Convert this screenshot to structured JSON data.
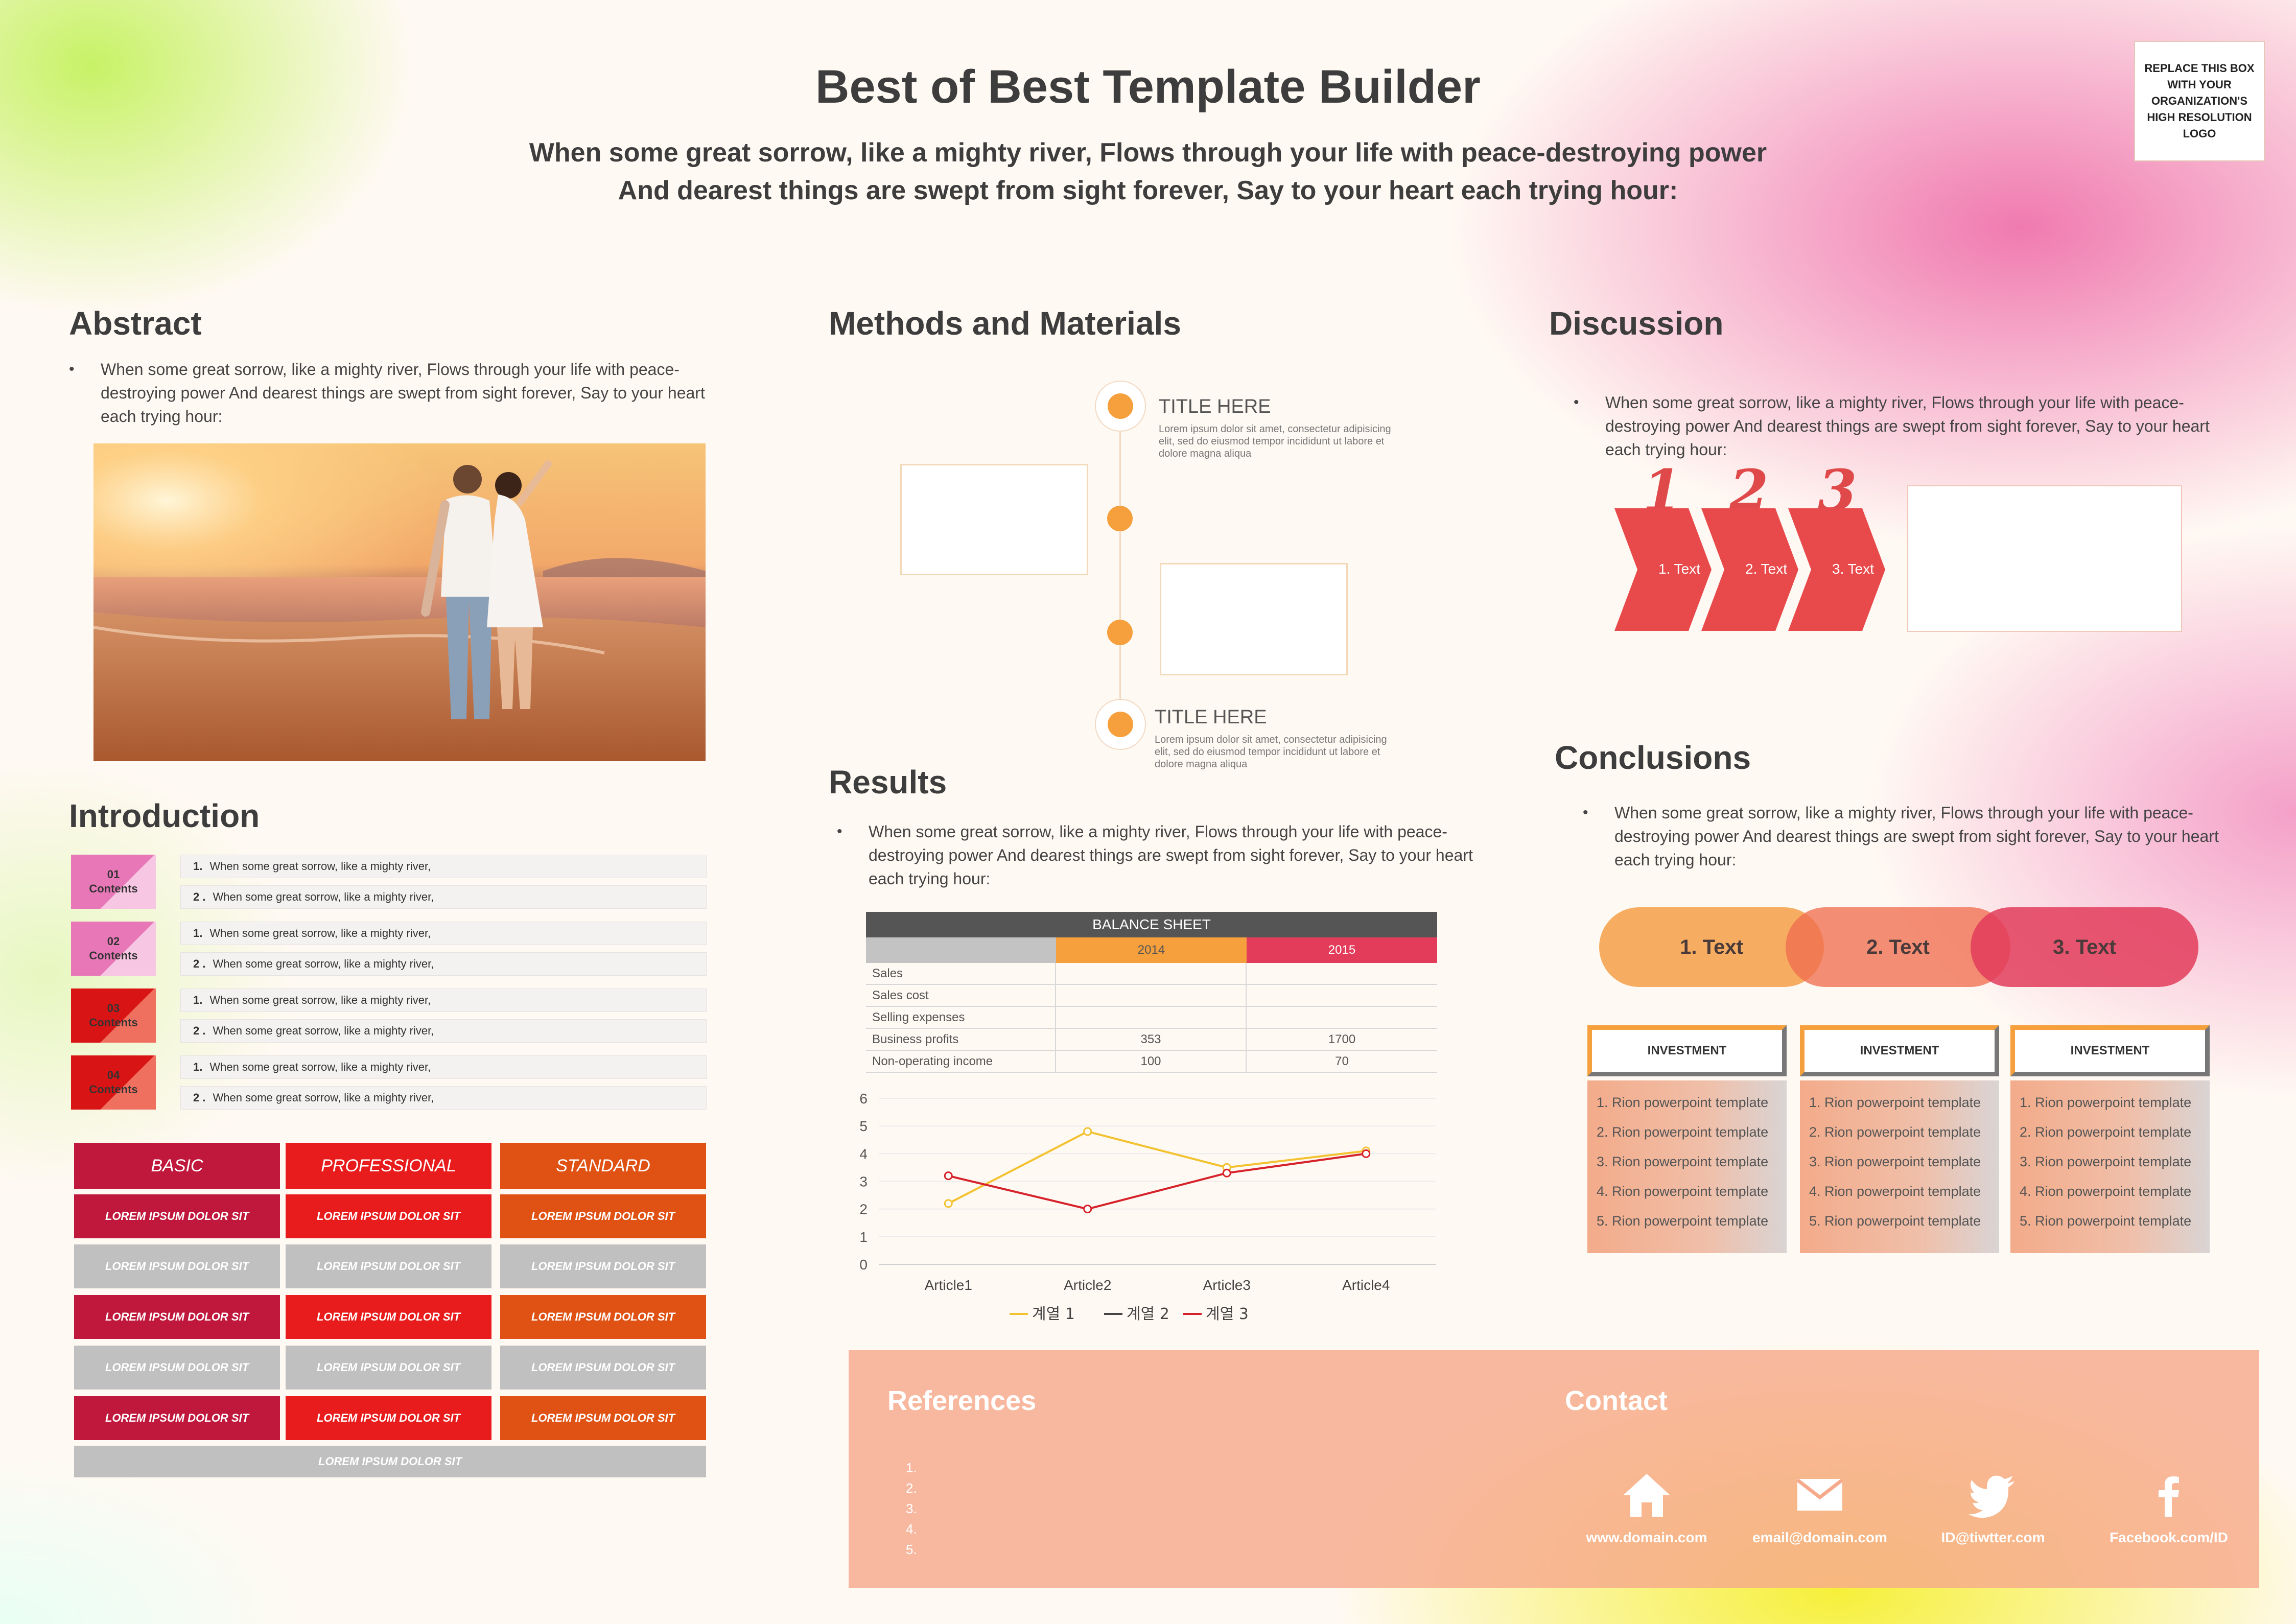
{
  "header": {
    "title": "Best of Best Template Builder",
    "subtitle_line1": "When some great sorrow, like a mighty river, Flows through your life with peace-destroying power",
    "subtitle_line2": "And dearest things are swept from sight forever, Say to your heart each trying hour:",
    "logo_text": "REPLACE THIS BOX WITH YOUR ORGANIZATION'S HIGH RESOLUTION LOGO"
  },
  "abstract": {
    "heading": "Abstract",
    "text": "When some great sorrow, like a mighty river, Flows through your life with peace-destroying power And dearest things are swept from sight forever, Say to your heart each trying hour:"
  },
  "introduction": {
    "heading": "Introduction",
    "rows": [
      {
        "badge_num": "01",
        "badge_label": "Contents",
        "line1_num": "1.",
        "line1": "When some great sorrow, like a mighty river,",
        "line2_num": "2 .",
        "line2": "When some great sorrow, like a mighty river,"
      },
      {
        "badge_num": "02",
        "badge_label": "Contents",
        "line1_num": "1.",
        "line1": "When some great sorrow, like a mighty river,",
        "line2_num": "2 .",
        "line2": "When some great sorrow, like a mighty river,"
      },
      {
        "badge_num": "03",
        "badge_label": "Contents",
        "line1_num": "1.",
        "line1": "When some great sorrow, like a mighty river,",
        "line2_num": "2 .",
        "line2": "When some great sorrow, like a mighty river,"
      },
      {
        "badge_num": "04",
        "badge_label": "Contents",
        "line1_num": "1.",
        "line1": "When some great sorrow, like a mighty river,",
        "line2_num": "2 .",
        "line2": "When some great sorrow, like a mighty river,"
      }
    ]
  },
  "pricing": {
    "headers": [
      "BASIC",
      "PROFESSIONAL",
      "STANDARD"
    ],
    "cell_text": "LOREM IPSUM DOLOR SIT",
    "footer_text": "LOREM IPSUM DOLOR SIT",
    "colors": {
      "basic": "#c0183c",
      "professional": "#e81c1c",
      "standard": "#e05214",
      "gray": "#c0c0c0"
    }
  },
  "methods": {
    "heading": "Methods and Materials",
    "item1_title": "TITLE HERE",
    "item1_desc": "Lorem ipsum dolor sit amet, consectetur adipisicing elit, sed do eiusmod tempor incididunt ut labore et dolore magna aliqua",
    "item2_title": "TITLE HERE",
    "item2_desc": "Lorem ipsum dolor sit amet, consectetur adipisicing elit, sed do eiusmod tempor incididunt ut labore et dolore magna aliqua"
  },
  "results": {
    "heading": "Results",
    "text": "When some great sorrow, like a mighty river, Flows through your life with peace-destroying power And dearest things are swept from sight forever, Say to your heart each trying hour:",
    "balance_sheet": {
      "title": "BALANCE SHEET",
      "col_headers": [
        "",
        "2014",
        "2015"
      ],
      "rows": [
        {
          "label": "Sales",
          "v2014": "",
          "v2015": ""
        },
        {
          "label": "Sales cost",
          "v2014": "",
          "v2015": ""
        },
        {
          "label": "Selling expenses",
          "v2014": "",
          "v2015": ""
        },
        {
          "label": "Business profits",
          "v2014": "353",
          "v2015": "1700"
        },
        {
          "label": "Non-operating income",
          "v2014": "100",
          "v2015": "70"
        }
      ]
    }
  },
  "chart_data": {
    "type": "line",
    "categories": [
      "Article1",
      "Article2",
      "Article3",
      "Article4"
    ],
    "series": [
      {
        "name": "계열 1",
        "values": [
          2.2,
          4.8,
          3.5,
          4.1
        ],
        "color": "#f2c230"
      },
      {
        "name": "계열 2",
        "values": [
          null,
          null,
          null,
          null
        ],
        "color": "#444444"
      },
      {
        "name": "계열 3",
        "values": [
          3.2,
          2.0,
          3.3,
          4.0
        ],
        "color": "#d6232a"
      }
    ],
    "y_ticks": [
      "0",
      "1",
      "2",
      "3",
      "4",
      "5",
      "6"
    ],
    "ylim": [
      0,
      6
    ],
    "grid": true,
    "legend_position": "bottom"
  },
  "discussion": {
    "heading": "Discussion",
    "text": "When some great sorrow, like a mighty river, Flows through your life with peace-destroying power And dearest things are swept from sight forever, Say to your heart each trying hour:",
    "steps": [
      {
        "num": "1",
        "label": "1. Text"
      },
      {
        "num": "2",
        "label": "2. Text"
      },
      {
        "num": "3",
        "label": "3. Text"
      }
    ]
  },
  "conclusions": {
    "heading": "Conclusions",
    "text": "When some great sorrow, like a mighty river, Flows through your life with peace-destroying power And dearest things are swept from sight forever, Say to your heart each trying hour:",
    "pills": [
      "1. Text",
      "2. Text",
      "3. Text"
    ],
    "cards": [
      {
        "title": "INVESTMENT",
        "items": [
          "1.  Rion  powerpoint template",
          "2.  Rion  powerpoint template",
          "3.  Rion  powerpoint template",
          "4.  Rion  powerpoint template",
          "5.  Rion  powerpoint template"
        ]
      },
      {
        "title": "INVESTMENT",
        "items": [
          "1.  Rion  powerpoint template",
          "2.  Rion  powerpoint template",
          "3.  Rion  powerpoint template",
          "4.  Rion  powerpoint template",
          "5.  Rion  powerpoint template"
        ]
      },
      {
        "title": "INVESTMENT",
        "items": [
          "1.  Rion  powerpoint template",
          "2.  Rion  powerpoint template",
          "3.  Rion  powerpoint template",
          "4.  Rion  powerpoint template",
          "5.  Rion  powerpoint template"
        ]
      }
    ]
  },
  "references": {
    "heading": "References",
    "items": [
      "1.",
      "2.",
      "3.",
      "4.",
      "5."
    ]
  },
  "contact": {
    "heading": "Contact",
    "items": [
      {
        "icon": "home-icon",
        "label": "www.domain.com"
      },
      {
        "icon": "mail-icon",
        "label": "email@domain.com"
      },
      {
        "icon": "twitter-icon",
        "label": "ID@tiwtter.com"
      },
      {
        "icon": "facebook-icon",
        "label": "Facebook.com/ID"
      }
    ]
  }
}
